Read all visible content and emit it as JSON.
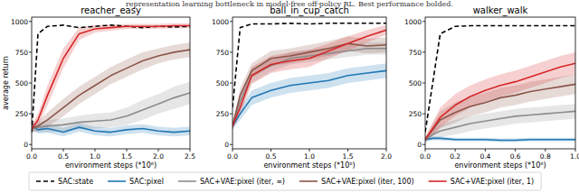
{
  "text_above": "representation learning bottleneck in model-free off-policy RL. Best performance bolded.",
  "chart_data": [
    {
      "type": "line",
      "title": "reacher_easy",
      "x_label": "environment steps (*10⁶)",
      "y_label": "average return",
      "x": [
        0,
        0.1,
        0.25,
        0.5,
        0.75,
        1,
        1.25,
        1.5,
        1.75,
        2,
        2.25,
        2.5
      ],
      "xlim": [
        0,
        2.5
      ],
      "xticks": [
        {
          "value": 0,
          "label": "0.0"
        },
        {
          "value": 0.5,
          "label": "0.5"
        },
        {
          "value": 1,
          "label": "1.0"
        },
        {
          "value": 1.5,
          "label": "1.5"
        },
        {
          "value": 2,
          "label": "2.0"
        },
        {
          "value": 2.5,
          "label": "2.5"
        }
      ],
      "ylim": [
        -35,
        1035
      ],
      "yticks": [
        0,
        250,
        500,
        750,
        1000
      ],
      "grid": false,
      "legend": "bottom",
      "series": [
        {
          "name": "SAC:state",
          "color": "#000000",
          "line_style": "dashed",
          "values": [
            100,
            900,
            960,
            970,
            950,
            960,
            970,
            960,
            950,
            960,
            955,
            960
          ]
        },
        {
          "name": "SAC:pixel",
          "color": "#1f77b4",
          "line_style": "solid",
          "values": [
            150,
            120,
            130,
            100,
            140,
            110,
            100,
            120,
            130,
            110,
            100,
            110
          ],
          "std": [
            30,
            30,
            35,
            35,
            35,
            35,
            35,
            35,
            35,
            35,
            35,
            35
          ]
        },
        {
          "name": "SAC+VAE:pixel (iter, ∞)",
          "color": "#8c8c8c",
          "line_style": "solid",
          "values": [
            130,
            140,
            150,
            160,
            180,
            190,
            200,
            230,
            280,
            330,
            380,
            420
          ],
          "std": [
            30,
            40,
            50,
            50,
            55,
            60,
            60,
            70,
            80,
            80,
            90,
            90
          ]
        },
        {
          "name": "SAC+VAE:pixel (iter, 100)",
          "color": "#8c564b",
          "line_style": "solid",
          "values": [
            130,
            150,
            200,
            300,
            400,
            480,
            560,
            620,
            680,
            720,
            750,
            770
          ],
          "std": [
            30,
            40,
            60,
            70,
            70,
            70,
            70,
            70,
            70,
            60,
            60,
            60
          ]
        },
        {
          "name": "SAC+VAE:pixel (iter, 1)",
          "color": "#d62728",
          "line_style": "solid",
          "values": [
            130,
            200,
            400,
            700,
            900,
            940,
            950,
            960,
            960,
            960,
            965,
            965
          ],
          "std": [
            30,
            50,
            80,
            80,
            50,
            30,
            25,
            20,
            20,
            20,
            20,
            20
          ]
        }
      ]
    },
    {
      "type": "line",
      "title": "ball_in_cup_catch",
      "x_label": "environment steps (*10⁶)",
      "x": [
        0,
        0.1,
        0.25,
        0.5,
        0.75,
        1,
        1.25,
        1.5,
        1.75,
        2
      ],
      "xlim": [
        0,
        2
      ],
      "xticks": [
        {
          "value": 0,
          "label": "0.0"
        },
        {
          "value": 0.5,
          "label": "0.5"
        },
        {
          "value": 1,
          "label": "1.0"
        },
        {
          "value": 1.5,
          "label": "1.5"
        },
        {
          "value": 2,
          "label": "2.0"
        }
      ],
      "ylim": [
        -35,
        1035
      ],
      "yticks": [
        0,
        250,
        500,
        750,
        1000
      ],
      "grid": false,
      "series": [
        {
          "color": "#000000",
          "line_style": "dashed",
          "values": [
            300,
            950,
            980,
            980,
            985,
            980,
            985,
            985,
            985,
            985
          ]
        },
        {
          "color": "#1f77b4",
          "line_style": "solid",
          "values": [
            150,
            250,
            380,
            440,
            480,
            500,
            520,
            560,
            580,
            600
          ],
          "std": [
            30,
            50,
            60,
            60,
            60,
            60,
            60,
            60,
            60,
            60
          ]
        },
        {
          "color": "#8c8c8c",
          "line_style": "solid",
          "values": [
            150,
            350,
            560,
            640,
            700,
            720,
            740,
            760,
            780,
            780
          ],
          "std": [
            30,
            60,
            60,
            50,
            50,
            50,
            50,
            50,
            50,
            50
          ]
        },
        {
          "color": "#8c564b",
          "line_style": "solid",
          "values": [
            150,
            400,
            600,
            700,
            720,
            750,
            780,
            820,
            800,
            810
          ],
          "std": [
            30,
            60,
            60,
            60,
            60,
            60,
            60,
            60,
            60,
            60
          ]
        },
        {
          "color": "#d62728",
          "line_style": "solid",
          "values": [
            150,
            300,
            560,
            650,
            680,
            700,
            760,
            820,
            880,
            930
          ],
          "std": [
            30,
            60,
            70,
            70,
            70,
            70,
            60,
            60,
            50,
            40
          ]
        }
      ]
    },
    {
      "type": "line",
      "title": "walker_walk",
      "x_label": "environment steps (*10⁶)",
      "x": [
        0,
        0.05,
        0.1,
        0.2,
        0.3,
        0.4,
        0.5,
        0.6,
        0.7,
        0.8,
        0.9,
        1
      ],
      "xlim": [
        0,
        1
      ],
      "xticks": [
        {
          "value": 0,
          "label": "0.0"
        },
        {
          "value": 0.2,
          "label": "0.2"
        },
        {
          "value": 0.4,
          "label": "0.4"
        },
        {
          "value": 0.6,
          "label": "0.6"
        },
        {
          "value": 0.8,
          "label": "0.8"
        },
        {
          "value": 1,
          "label": "1.0"
        }
      ],
      "ylim": [
        -35,
        1035
      ],
      "yticks": [
        0,
        250,
        500,
        750,
        1000
      ],
      "grid": false,
      "series": [
        {
          "color": "#000000",
          "line_style": "dashed",
          "values": [
            100,
            500,
            900,
            960,
            965,
            965,
            965,
            965,
            965,
            965,
            965,
            965
          ]
        },
        {
          "color": "#1f77b4",
          "line_style": "solid",
          "values": [
            40,
            50,
            50,
            40,
            40,
            40,
            35,
            35,
            40,
            40,
            40,
            40
          ],
          "std": [
            15,
            15,
            15,
            15,
            15,
            15,
            15,
            15,
            15,
            15,
            15,
            15
          ]
        },
        {
          "color": "#8c8c8c",
          "line_style": "solid",
          "values": [
            40,
            80,
            110,
            140,
            170,
            190,
            210,
            230,
            240,
            250,
            260,
            270
          ],
          "std": [
            20,
            40,
            50,
            60,
            60,
            60,
            60,
            60,
            60,
            60,
            60,
            60
          ]
        },
        {
          "color": "#8c564b",
          "line_style": "solid",
          "values": [
            40,
            120,
            200,
            260,
            310,
            340,
            380,
            400,
            430,
            450,
            470,
            490
          ],
          "std": [
            20,
            50,
            70,
            80,
            80,
            80,
            80,
            80,
            80,
            80,
            80,
            80
          ]
        },
        {
          "color": "#d62728",
          "line_style": "solid",
          "values": [
            40,
            130,
            220,
            320,
            390,
            440,
            480,
            510,
            550,
            590,
            630,
            660
          ],
          "std": [
            20,
            50,
            80,
            90,
            90,
            90,
            90,
            90,
            90,
            90,
            90,
            90
          ]
        }
      ]
    }
  ]
}
